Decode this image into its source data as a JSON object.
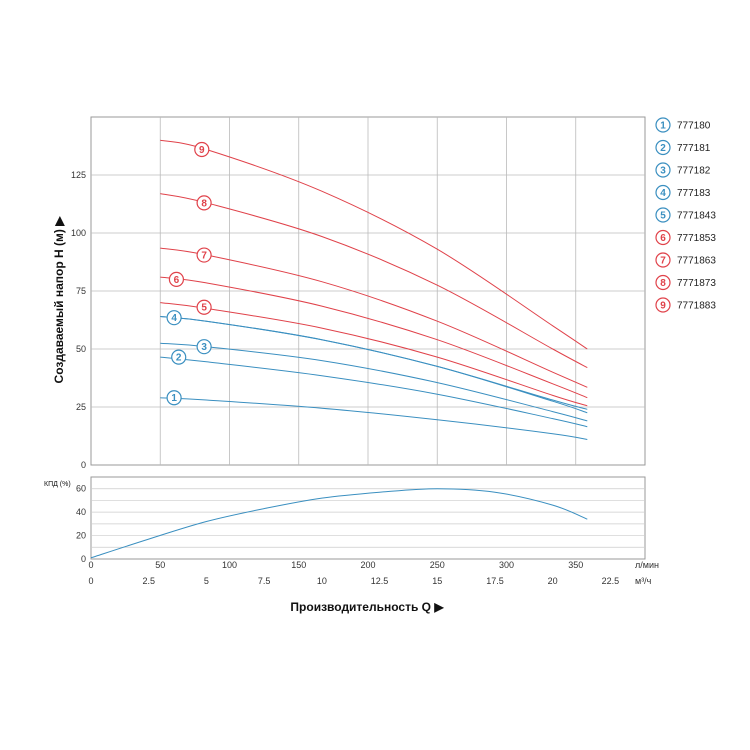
{
  "chart_data": [
    {
      "type": "line",
      "title": "",
      "ylabel": "Создаваемый напор H (м) ▶",
      "ylim": [
        0,
        150
      ],
      "yticks": [
        0,
        25,
        50,
        75,
        100,
        125
      ],
      "xlim": [
        0,
        24
      ],
      "grid": true,
      "legend_position": "right",
      "colors": {
        "blue": "#3a8fc0",
        "red": "#e0424a"
      },
      "series": [
        {
          "id": "1",
          "name": "777180",
          "color": "blue",
          "label_x": 3.6,
          "x": [
            3,
            5,
            10,
            15,
            20,
            21.5
          ],
          "y": [
            29,
            28,
            24.5,
            19.5,
            13.5,
            11
          ]
        },
        {
          "id": "2",
          "name": "777181",
          "color": "blue",
          "label_x": 3.8,
          "x": [
            3,
            5,
            10,
            15,
            20,
            21.5
          ],
          "y": [
            46.5,
            44.5,
            38.5,
            30.5,
            20,
            16.5
          ]
        },
        {
          "id": "3",
          "name": "777182",
          "color": "blue",
          "label_x": 4.9,
          "x": [
            3,
            5,
            10,
            15,
            20,
            21.5
          ],
          "y": [
            52.5,
            51,
            45,
            35.5,
            23,
            19
          ]
        },
        {
          "id": "4",
          "name": "777183",
          "color": "blue",
          "label_x": 3.6,
          "x": [
            3,
            5,
            10,
            15,
            20,
            21.5
          ],
          "y": [
            64,
            62,
            54,
            42.5,
            27.5,
            22.5
          ]
        },
        {
          "id": "5",
          "name": "7771843",
          "color": "blue",
          "label_x": 3.6,
          "x": [
            3,
            5,
            10,
            15,
            20,
            21.5
          ],
          "y": [
            64,
            62,
            54,
            42.5,
            28,
            24
          ]
        },
        {
          "id": "6",
          "name": "7771853",
          "color": "red",
          "label_x": 3.7,
          "x": [
            3,
            5,
            10,
            15,
            20,
            21.5
          ],
          "y": [
            81,
            78.5,
            68.5,
            54,
            35,
            29
          ]
        },
        {
          "id": "7",
          "name": "7771863",
          "color": "red",
          "label_x": 4.9,
          "x": [
            3,
            5,
            10,
            15,
            20,
            21.5
          ],
          "y": [
            93.5,
            90.5,
            79,
            62,
            40,
            33.5
          ]
        },
        {
          "id": "8",
          "name": "7771873",
          "color": "red",
          "label_x": 4.9,
          "x": [
            3,
            5,
            10,
            15,
            20,
            21.5
          ],
          "y": [
            117,
            113,
            98.5,
            77.5,
            50,
            42
          ]
        },
        {
          "id": "9",
          "name": "7771883",
          "color": "red",
          "label_x": 4.8,
          "x": [
            3,
            5,
            10,
            15,
            20,
            21.5
          ],
          "y": [
            140,
            136,
            118,
            93,
            60,
            50
          ]
        },
        {
          "id": "5b",
          "name": "7771843",
          "color": "red",
          "label_x": 4.9,
          "hidden_label": true,
          "x": [
            3,
            5,
            10,
            15,
            20,
            21.5
          ],
          "y": [
            70,
            67.5,
            59,
            46.5,
            30,
            25.5
          ]
        }
      ]
    },
    {
      "type": "line",
      "title": "КПД (%)",
      "ylim": [
        0,
        70
      ],
      "yticks": [
        0,
        20,
        40,
        60
      ],
      "xlim": [
        0,
        24
      ],
      "grid": true,
      "series": [
        {
          "name": "КПД",
          "color": "blue",
          "x": [
            0,
            2.5,
            5,
            7.5,
            10,
            12.5,
            15,
            17.5,
            20,
            21.5
          ],
          "y": [
            1,
            17,
            32,
            43,
            52,
            57,
            60,
            57,
            46,
            34
          ]
        }
      ]
    }
  ],
  "x_axis": {
    "lpm_ticks": [
      {
        "label": "50",
        "x": 3
      },
      {
        "label": "100",
        "x": 6
      },
      {
        "label": "150",
        "x": 9
      },
      {
        "label": "200",
        "x": 12
      },
      {
        "label": "250",
        "x": 15
      },
      {
        "label": "300",
        "x": 18
      },
      {
        "label": "350",
        "x": 21
      }
    ],
    "m3h_ticks": [
      "0",
      "2.5",
      "5",
      "7.5",
      "10",
      "12.5",
      "15",
      "17.5",
      "20",
      "22.5"
    ],
    "lpm_unit": "л/мин",
    "m3h_unit": "м³/ч",
    "xlabel": "Производительность Q ▶"
  },
  "legend": [
    {
      "id": "1",
      "name": "777180",
      "color": "blue"
    },
    {
      "id": "2",
      "name": "777181",
      "color": "blue"
    },
    {
      "id": "3",
      "name": "777182",
      "color": "blue"
    },
    {
      "id": "4",
      "name": "777183",
      "color": "blue"
    },
    {
      "id": "5",
      "name": "7771843",
      "color": "blue"
    },
    {
      "id": "6",
      "name": "7771853",
      "color": "red"
    },
    {
      "id": "7",
      "name": "7771863",
      "color": "red"
    },
    {
      "id": "8",
      "name": "7771873",
      "color": "red"
    },
    {
      "id": "9",
      "name": "7771883",
      "color": "red"
    }
  ],
  "badge_labels": [
    {
      "id": "1",
      "color": "blue",
      "x": 3.6,
      "y": 29
    },
    {
      "id": "2",
      "color": "blue",
      "x": 3.8,
      "y": 46.5
    },
    {
      "id": "3",
      "color": "blue",
      "x": 4.9,
      "y": 51
    },
    {
      "id": "4",
      "color": "blue",
      "x": 3.6,
      "y": 63.5
    },
    {
      "id": "5",
      "color": "red",
      "x": 4.9,
      "y": 68
    },
    {
      "id": "6",
      "color": "red",
      "x": 3.7,
      "y": 80
    },
    {
      "id": "7",
      "color": "red",
      "x": 4.9,
      "y": 90.5
    },
    {
      "id": "8",
      "color": "red",
      "x": 4.9,
      "y": 113
    },
    {
      "id": "9",
      "color": "red",
      "x": 4.8,
      "y": 136
    }
  ]
}
